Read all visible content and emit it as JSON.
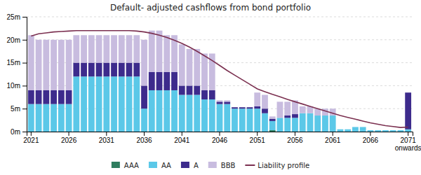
{
  "chart_data": {
    "type": "bar",
    "title": "Default- adjusted cashflows from bond portfolio",
    "categories": [
      "2021",
      null,
      null,
      null,
      null,
      "2026",
      null,
      null,
      null,
      null,
      "2031",
      null,
      null,
      null,
      null,
      "2036",
      null,
      null,
      null,
      null,
      "2041",
      null,
      null,
      null,
      null,
      "2046",
      null,
      null,
      null,
      null,
      "2051",
      null,
      null,
      null,
      null,
      "2056",
      null,
      null,
      null,
      null,
      "2061",
      null,
      null,
      null,
      null,
      "2066",
      null,
      null,
      null,
      null,
      "2071\nonwards"
    ],
    "series": [
      {
        "name": "AAA",
        "type": "bar",
        "color": "#2e7d5e",
        "values": [
          0,
          0,
          0,
          0,
          0,
          0,
          0,
          0,
          0,
          0,
          0,
          0,
          0,
          0,
          0,
          0,
          0,
          0,
          0,
          0,
          0,
          0,
          0,
          0,
          0,
          0,
          0,
          0,
          0,
          0,
          0,
          0,
          0.3,
          0,
          0,
          0,
          0,
          0,
          0,
          0,
          0,
          0,
          0,
          0,
          0,
          0,
          0,
          0,
          0,
          0,
          0
        ]
      },
      {
        "name": "AA",
        "type": "bar",
        "color": "#5bc8e8",
        "values": [
          6,
          6,
          6,
          6,
          6,
          6,
          12,
          12,
          12,
          12,
          12,
          12,
          12,
          12,
          12,
          5,
          9,
          9,
          9,
          9,
          8,
          8,
          8,
          7,
          7,
          6,
          6,
          5,
          5,
          5,
          5,
          4,
          2,
          3,
          3,
          3,
          4,
          4,
          3.5,
          3.5,
          3.5,
          0.5,
          0.5,
          1,
          1,
          0.3,
          0.3,
          0.3,
          0.3,
          0.3,
          0.5
        ]
      },
      {
        "name": "A",
        "type": "bar",
        "color": "#3d2b8c",
        "values": [
          3,
          3,
          3,
          3,
          3,
          3,
          3,
          3,
          3,
          3,
          3,
          3,
          3,
          3,
          3,
          5,
          4,
          4,
          4,
          4,
          2,
          2,
          2,
          2,
          2,
          0.5,
          0.5,
          0.3,
          0.3,
          0.3,
          0.5,
          1,
          0.5,
          0,
          0.5,
          0.8,
          0,
          0,
          0,
          0,
          0,
          0,
          0,
          0,
          0,
          0,
          0,
          0,
          0,
          0,
          8
        ]
      },
      {
        "name": "BBB",
        "type": "bar",
        "color": "#c8bcdf",
        "values": [
          12,
          11,
          11,
          11,
          11,
          11,
          6,
          6,
          6,
          6,
          6,
          6,
          6,
          6,
          6,
          10,
          9,
          9,
          8,
          8,
          9,
          8,
          8,
          8,
          8,
          0.3,
          0.3,
          0,
          0,
          0,
          3,
          3,
          0.5,
          3.5,
          3,
          3,
          1.5,
          1.5,
          1.5,
          1.5,
          1.5,
          0,
          0,
          0,
          0,
          0,
          0,
          0,
          0,
          0,
          0
        ]
      },
      {
        "name": "Liability profile",
        "type": "line",
        "color": "#7b3050",
        "values": [
          20.8,
          21.3,
          21.5,
          21.7,
          21.8,
          21.9,
          22.0,
          22.0,
          22.0,
          22.0,
          22.0,
          22.0,
          22.0,
          22.0,
          21.9,
          21.7,
          21.4,
          21.0,
          20.5,
          19.9,
          19.2,
          18.4,
          17.5,
          16.5,
          15.5,
          14.4,
          13.3,
          12.3,
          11.3,
          10.3,
          9.3,
          8.7,
          8.1,
          7.6,
          7.0,
          6.5,
          6.0,
          5.5,
          5.0,
          4.5,
          4.0,
          3.5,
          3.1,
          2.7,
          2.3,
          1.9,
          1.6,
          1.3,
          1.1,
          0.9,
          1.0
        ]
      }
    ],
    "stacked": true,
    "ylim": [
      0,
      25
    ],
    "yticks": [
      {
        "value": 0,
        "label": "0m"
      },
      {
        "value": 5,
        "label": "5m"
      },
      {
        "value": 10,
        "label": "10m"
      },
      {
        "value": 15,
        "label": "15m"
      },
      {
        "value": 20,
        "label": "20m"
      },
      {
        "value": 25,
        "label": "25m"
      }
    ],
    "grid": true,
    "legend": "bottom"
  }
}
